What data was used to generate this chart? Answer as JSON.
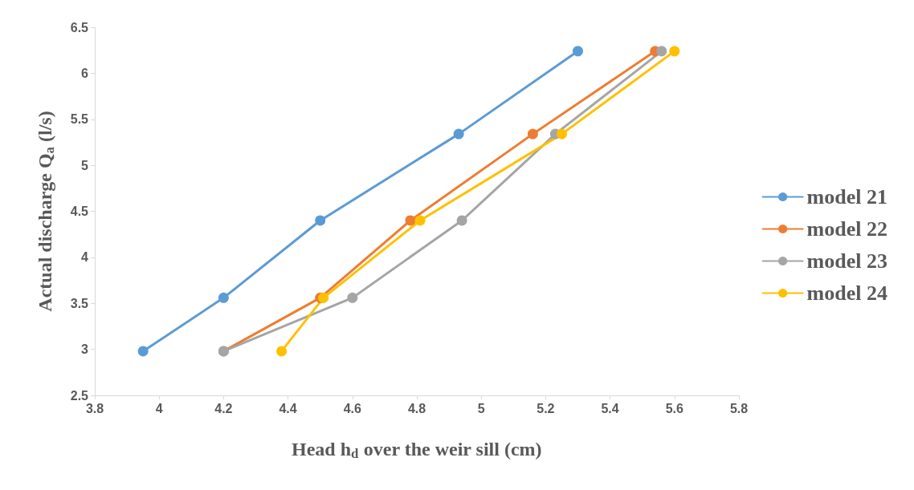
{
  "chart_data": {
    "type": "line",
    "xlabel": "Head h$_{d}$ over the weir sill (cm)",
    "ylabel": "Actual discharge Q$_{a}$ (l/s)",
    "xlim": [
      3.8,
      5.8
    ],
    "xticks": [
      3.8,
      4,
      4.2,
      4.4,
      4.6,
      4.8,
      5,
      5.2,
      5.4,
      5.6,
      5.8
    ],
    "ylim": [
      2.5,
      6.5
    ],
    "yticks": [
      2.5,
      3,
      3.5,
      4,
      4.5,
      5,
      5.5,
      6,
      6.5
    ],
    "grid": false,
    "legend": "right",
    "marker": "circle",
    "line_style": "solid",
    "series": [
      {
        "name": "model 21",
        "color": "#5b9bd5",
        "x": [
          3.95,
          4.2,
          4.5,
          4.93,
          5.3
        ],
        "values": [
          2.98,
          3.56,
          4.4,
          5.34,
          6.24
        ]
      },
      {
        "name": "model 22",
        "color": "#ed7d31",
        "x": [
          4.2,
          4.5,
          4.78,
          5.16,
          5.54
        ],
        "values": [
          2.98,
          3.56,
          4.4,
          5.34,
          6.24
        ]
      },
      {
        "name": "model 23",
        "color": "#a5a5a5",
        "x": [
          4.2,
          4.6,
          4.94,
          5.23,
          5.56
        ],
        "values": [
          2.98,
          3.56,
          4.4,
          5.34,
          6.24
        ]
      },
      {
        "name": "model 24",
        "color": "#ffc000",
        "x": [
          4.38,
          4.51,
          4.81,
          5.25,
          5.6
        ],
        "values": [
          2.98,
          3.56,
          4.4,
          5.34,
          6.24
        ]
      }
    ]
  }
}
